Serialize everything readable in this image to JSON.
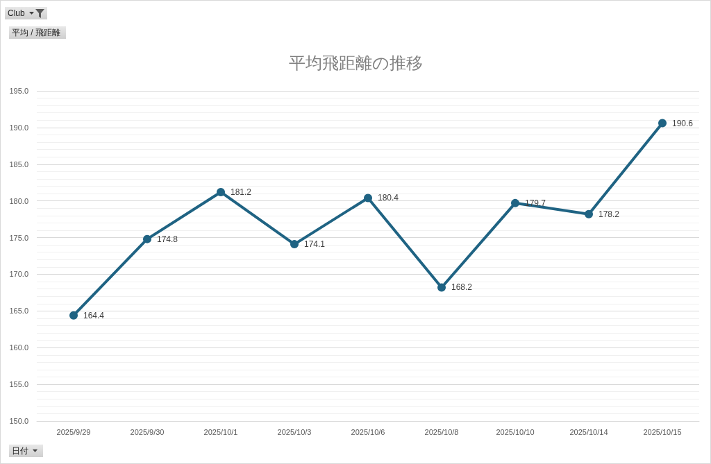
{
  "chart_data": {
    "type": "line",
    "title": "平均飛距離の推移",
    "xlabel": "日付",
    "annotations": [
      "Club",
      "平均 / 飛距離"
    ],
    "categories": [
      "2025/9/29",
      "2025/9/30",
      "2025/10/1",
      "2025/10/3",
      "2025/10/6",
      "2025/10/8",
      "2025/10/10",
      "2025/10/14",
      "2025/10/15"
    ],
    "values": [
      164.4,
      174.8,
      181.2,
      174.1,
      180.4,
      168.2,
      179.7,
      178.2,
      190.6
    ],
    "color": "#1f6383",
    "ylim": [
      150,
      195
    ],
    "yticks": [
      {
        "value": 150,
        "label": "150.0"
      },
      {
        "value": 155,
        "label": "155.0"
      },
      {
        "value": 160,
        "label": "160.0"
      },
      {
        "value": 165,
        "label": "165.0"
      },
      {
        "value": 170,
        "label": "170.0"
      },
      {
        "value": 175,
        "label": "175.0"
      },
      {
        "value": 180,
        "label": "180.0"
      },
      {
        "value": 185,
        "label": "185.0"
      },
      {
        "value": 190,
        "label": "190.0"
      },
      {
        "value": 195,
        "label": "195.0"
      }
    ],
    "grid": true,
    "marker": "circle",
    "line_style": "solid",
    "data_labels": true
  }
}
